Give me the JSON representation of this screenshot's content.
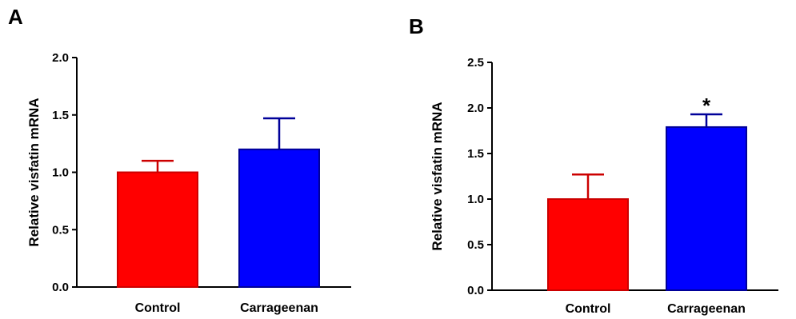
{
  "chart_data": [
    {
      "type": "bar",
      "panel_label": "A",
      "categories": [
        "Control",
        "Carrageenan"
      ],
      "values": [
        1.0,
        1.2
      ],
      "errors": [
        0.1,
        0.27
      ],
      "bar_colors": [
        "#ff0000",
        "#0000ff"
      ],
      "error_colors": [
        "#cc0000",
        "#000099"
      ],
      "ylabel": "Relative visfatin mRNA",
      "ylim": [
        0,
        2.0
      ],
      "yticks": [
        "0.0",
        "0.5",
        "1.0",
        "1.5",
        "2.0"
      ],
      "significance": [
        "",
        ""
      ]
    },
    {
      "type": "bar",
      "panel_label": "B",
      "categories": [
        "Control",
        "Carrageenan"
      ],
      "values": [
        1.0,
        1.79
      ],
      "errors": [
        0.27,
        0.14
      ],
      "bar_colors": [
        "#ff0000",
        "#0000ff"
      ],
      "error_colors": [
        "#cc0000",
        "#000099"
      ],
      "ylabel": "Relative visfatin mRNA",
      "ylim": [
        0,
        2.5
      ],
      "yticks": [
        "0.0",
        "0.5",
        "1.0",
        "1.5",
        "2.0",
        "2.5"
      ],
      "significance": [
        "",
        "*"
      ]
    }
  ]
}
